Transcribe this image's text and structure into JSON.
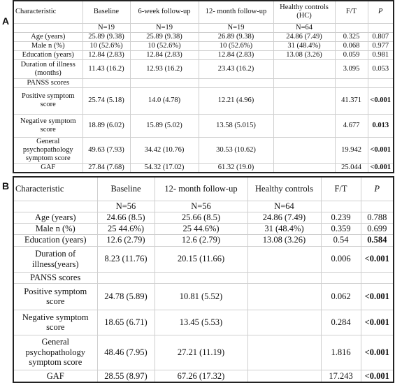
{
  "panels": [
    {
      "label": "A",
      "header": [
        "Characteristic",
        "Baseline",
        "6-week follow-up",
        "12- month follow-up",
        "Healthy controls (HC)",
        "F/T",
        "P"
      ],
      "rows": [
        [
          null,
          "N=19",
          "N=19",
          "N=19",
          "N=64",
          null,
          null
        ],
        [
          "Age (years)",
          "25.89 (9.38)",
          "25.89 (9.38)",
          "26.89 (9.38)",
          "24.86 (7.49)",
          "0.325",
          "0.807"
        ],
        [
          "Male n (%)",
          "10 (52.6%)",
          "10 (52.6%)",
          "10 (52.6%)",
          "31 (48.4%)",
          "0.068",
          "0.977"
        ],
        [
          "Education (years)",
          "12.84 (2.83)",
          "12.84 (2.83)",
          "12.84 (2.83)",
          "13.08 (3.26)",
          "0.059",
          "0.981"
        ],
        [
          "Duration of illness (months)",
          "11.43 (16.2)",
          "12.93 (16.2)",
          "23.43 (16.2)",
          null,
          "3.095",
          "0.053"
        ],
        [
          "PANSS scores",
          null,
          null,
          null,
          null,
          null,
          null
        ],
        [
          "Positive symptom score",
          "25.74 (5.18)",
          "14.0 (4.78)",
          "12.21 (4.96)",
          null,
          "41.371",
          "<0.001"
        ],
        [
          "Negative symptom score",
          "18.89 (6.02)",
          "15.89 (5.02)",
          "13.58 (5.015)",
          null,
          "4.677",
          "0.013"
        ],
        [
          "General psychopathology symptom score",
          "49.63 (7.93)",
          "34.42 (10.76)",
          "30.53 (10.62)",
          null,
          "19.942",
          "<0.001"
        ],
        [
          "GAF",
          "27.84 (7.68)",
          "54.32 (17.02)",
          "61.32 (19.0)",
          null,
          "25.044",
          "<0.001"
        ]
      ]
    },
    {
      "label": "B",
      "header": [
        "Characteristic",
        "Baseline",
        "12- month follow-up",
        "Healthy controls",
        "F/T",
        "P"
      ],
      "rows": [
        [
          null,
          "N=56",
          "N=56",
          "N=64",
          null,
          null
        ],
        [
          "Age (years)",
          "24.66 (8.5)",
          "25.66 (8.5)",
          "24.86 (7.49)",
          "0.239",
          "0.788"
        ],
        [
          "Male n (%)",
          "25 44.6%)",
          "25 44.6%)",
          "31 (48.4%)",
          "0.359",
          "0.699"
        ],
        [
          "Education (years)",
          "12.6 (2.79)",
          "12.6 (2.79)",
          "13.08 (3.26)",
          "0.54",
          "0.584"
        ],
        [
          "Duration of illness(years)",
          "8.23 (11.76)",
          "20.15 (11.66)",
          null,
          "0.006",
          "<0.001"
        ],
        [
          "PANSS scores",
          null,
          null,
          null,
          null,
          null
        ],
        [
          "Positive symptom score",
          "24.78 (5.89)",
          "10.81 (5.52)",
          null,
          "0.062",
          "<0.001"
        ],
        [
          "Negative symptom score",
          "18.65 (6.71)",
          "13.45 (5.53)",
          null,
          "0.284",
          "<0.001"
        ],
        [
          "General psychopathology symptom score",
          "48.46 (7.95)",
          "27.21 (11.19)",
          null,
          "1.816",
          "<0.001"
        ],
        [
          "GAF",
          "28.55 (8.97)",
          "67.26 (17.32)",
          null,
          "17.243",
          "<0.001"
        ]
      ]
    }
  ]
}
